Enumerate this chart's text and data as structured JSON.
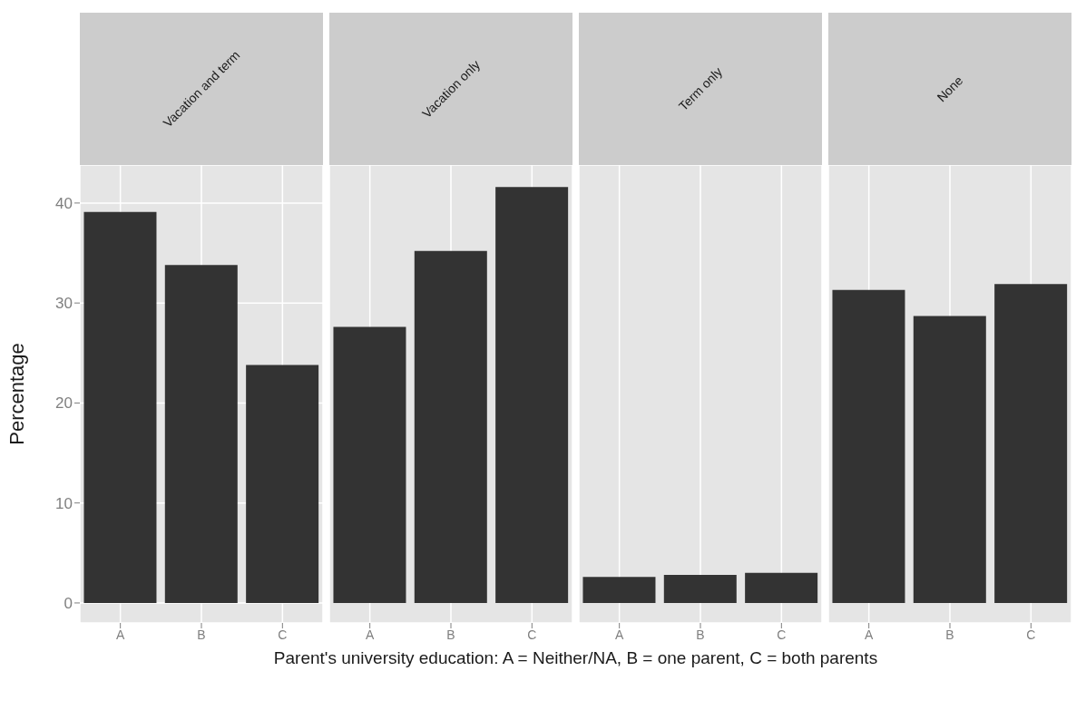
{
  "chart_data": [
    {
      "type": "bar",
      "title": "Vacation and term",
      "categories": [
        "A",
        "B",
        "C"
      ],
      "values": [
        39.1,
        33.8,
        23.8
      ],
      "color": "#333333",
      "ylim": [
        -2,
        43.8
      ],
      "yticks": [
        0,
        10,
        20,
        30,
        40
      ],
      "grid": true,
      "ylabel": "Percentage",
      "xlabel": "Parent's university education: A = Neither/NA, B = one parent, C = both parents"
    },
    {
      "type": "bar",
      "title": "Vacation only",
      "categories": [
        "A",
        "B",
        "C"
      ],
      "values": [
        27.6,
        35.2,
        41.6
      ],
      "color": "#333333",
      "ylim": [
        -2,
        43.8
      ],
      "yticks": [
        0,
        10,
        20,
        30,
        40
      ],
      "grid": true,
      "tick_labels": "x"
    },
    {
      "type": "bar",
      "title": "Term only",
      "categories": [
        "A",
        "B",
        "C"
      ],
      "values": [
        2.6,
        2.8,
        3.0
      ],
      "color": "#333333",
      "ylim": [
        -2,
        43.8
      ],
      "yticks": [
        0,
        10,
        20,
        30,
        40
      ],
      "grid": true,
      "tick_labels": "x"
    },
    {
      "type": "bar",
      "title": "None",
      "categories": [
        "A",
        "B",
        "C"
      ],
      "values": [
        31.3,
        28.7,
        31.9
      ],
      "color": "#333333",
      "ylim": [
        -2,
        43.8
      ],
      "yticks": [
        0,
        10,
        20,
        30,
        40
      ],
      "grid": true,
      "tick_labels": "x"
    }
  ]
}
